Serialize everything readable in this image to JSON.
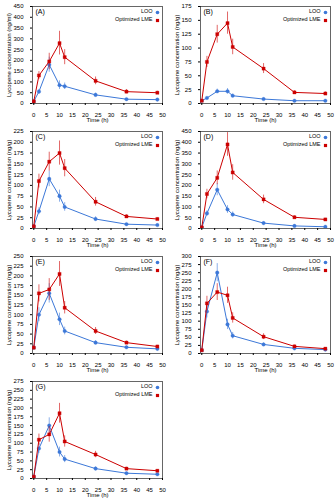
{
  "chart_data": [
    {
      "type": "line",
      "title": "(A)",
      "xlabel": "Time (h)",
      "ylabel": "Lycopene concentration (ng/ml)",
      "x": [
        0,
        2,
        6,
        10,
        12,
        24,
        36,
        48
      ],
      "series": [
        {
          "name": "LOO",
          "color": "#3c78d8",
          "marker": "circle",
          "values": [
            10,
            55,
            180,
            85,
            80,
            40,
            20,
            18
          ],
          "yerr": [
            3,
            10,
            35,
            20,
            15,
            8,
            4,
            3
          ]
        },
        {
          "name": "Optimized LME",
          "color": "#cc0000",
          "marker": "square",
          "values": [
            10,
            130,
            195,
            280,
            215,
            105,
            55,
            50
          ],
          "yerr": [
            3,
            18,
            38,
            55,
            35,
            18,
            10,
            7
          ]
        }
      ],
      "xlim": [
        -0.5,
        50
      ],
      "xticks": [
        0,
        5,
        10,
        15,
        20,
        25,
        30,
        35,
        40,
        45,
        50
      ],
      "ylim": [
        0,
        450
      ],
      "yticks": [
        0,
        50,
        100,
        150,
        200,
        250,
        300,
        350,
        400,
        450
      ],
      "legend": "upper right",
      "grid": false
    },
    {
      "type": "line",
      "title": "(B)",
      "xlabel": "Time (h)",
      "ylabel": "Lycopene concentration (ng/g)",
      "x": [
        0,
        2,
        6,
        10,
        12,
        24,
        36,
        48
      ],
      "series": [
        {
          "name": "LOO",
          "color": "#3c78d8",
          "marker": "circle",
          "values": [
            5,
            10,
            22,
            22,
            14,
            8,
            5,
            5
          ],
          "yerr": [
            1,
            2,
            4,
            5,
            3,
            2,
            1,
            1
          ]
        },
        {
          "name": "Optimized LME",
          "color": "#cc0000",
          "marker": "square",
          "values": [
            5,
            75,
            125,
            145,
            102,
            63,
            20,
            18
          ],
          "yerr": [
            1,
            10,
            16,
            20,
            14,
            9,
            3,
            3
          ]
        }
      ],
      "xlim": [
        -0.5,
        50
      ],
      "xticks": [
        0,
        5,
        10,
        15,
        20,
        25,
        30,
        35,
        40,
        45,
        50
      ],
      "ylim": [
        0,
        175
      ],
      "yticks": [
        0,
        25,
        50,
        75,
        100,
        125,
        150,
        175
      ],
      "legend": "upper right",
      "grid": false
    },
    {
      "type": "line",
      "title": "(C)",
      "xlabel": "Time (h)",
      "ylabel": "Lycopene concentration (ng/g)",
      "x": [
        0,
        2,
        6,
        10,
        12,
        24,
        36,
        48
      ],
      "series": [
        {
          "name": "LOO",
          "color": "#3c78d8",
          "marker": "circle",
          "values": [
            5,
            40,
            115,
            75,
            50,
            22,
            10,
            8
          ],
          "yerr": [
            2,
            8,
            18,
            14,
            10,
            5,
            2,
            2
          ]
        },
        {
          "name": "Optimized LME",
          "color": "#cc0000",
          "marker": "square",
          "values": [
            5,
            110,
            155,
            175,
            140,
            62,
            28,
            22
          ],
          "yerr": [
            2,
            16,
            22,
            28,
            20,
            10,
            4,
            3
          ]
        }
      ],
      "xlim": [
        -0.5,
        50
      ],
      "xticks": [
        0,
        5,
        10,
        15,
        20,
        25,
        30,
        35,
        40,
        45,
        50
      ],
      "ylim": [
        0,
        225
      ],
      "yticks": [
        0,
        25,
        50,
        75,
        100,
        125,
        150,
        175,
        200,
        225
      ],
      "legend": "upper right",
      "grid": false
    },
    {
      "type": "line",
      "title": "(D)",
      "xlabel": "Time (h)",
      "ylabel": "Lycopene concentration (ng/g)",
      "x": [
        0,
        2,
        6,
        10,
        12,
        24,
        36,
        48
      ],
      "series": [
        {
          "name": "LOO",
          "color": "#3c78d8",
          "marker": "circle",
          "values": [
            5,
            70,
            180,
            88,
            65,
            25,
            12,
            8
          ],
          "yerr": [
            2,
            12,
            28,
            18,
            12,
            5,
            3,
            2
          ]
        },
        {
          "name": "Optimized LME",
          "color": "#cc0000",
          "marker": "square",
          "values": [
            5,
            160,
            235,
            390,
            260,
            135,
            52,
            42
          ],
          "yerr": [
            2,
            22,
            32,
            55,
            36,
            20,
            7,
            5
          ]
        }
      ],
      "xlim": [
        -0.5,
        50
      ],
      "xticks": [
        0,
        5,
        10,
        15,
        20,
        25,
        30,
        35,
        40,
        45,
        50
      ],
      "ylim": [
        0,
        450
      ],
      "yticks": [
        0,
        50,
        100,
        150,
        200,
        250,
        300,
        350,
        400,
        450
      ],
      "legend": "upper right",
      "grid": false
    },
    {
      "type": "line",
      "title": "(E)",
      "xlabel": "Time (h)",
      "ylabel": "Lycopene concentration (ng/g)",
      "x": [
        0,
        2,
        6,
        10,
        12,
        24,
        36,
        48
      ],
      "series": [
        {
          "name": "LOO",
          "color": "#3c78d8",
          "marker": "circle",
          "values": [
            15,
            100,
            155,
            88,
            58,
            28,
            16,
            12
          ],
          "yerr": [
            4,
            18,
            25,
            16,
            10,
            5,
            3,
            2
          ]
        },
        {
          "name": "Optimized LME",
          "color": "#cc0000",
          "marker": "square",
          "values": [
            15,
            155,
            165,
            205,
            118,
            58,
            28,
            18
          ],
          "yerr": [
            4,
            22,
            28,
            32,
            16,
            9,
            4,
            3
          ]
        }
      ],
      "xlim": [
        -0.5,
        50
      ],
      "xticks": [
        0,
        5,
        10,
        15,
        20,
        25,
        30,
        35,
        40,
        45,
        50
      ],
      "ylim": [
        0,
        250
      ],
      "yticks": [
        0,
        25,
        50,
        75,
        100,
        125,
        150,
        175,
        200,
        225,
        250
      ],
      "legend": "upper right",
      "grid": false
    },
    {
      "type": "line",
      "title": "(F)",
      "xlabel": "Time (h)",
      "ylabel": "Lycopene concentration (ng/g)",
      "x": [
        0,
        2,
        6,
        10,
        12,
        24,
        36,
        48
      ],
      "series": [
        {
          "name": "LOO",
          "color": "#3c78d8",
          "marker": "circle",
          "values": [
            10,
            130,
            250,
            90,
            55,
            28,
            16,
            12
          ],
          "yerr": [
            3,
            20,
            28,
            16,
            10,
            5,
            3,
            2
          ]
        },
        {
          "name": "Optimized LME",
          "color": "#cc0000",
          "marker": "square",
          "values": [
            10,
            155,
            190,
            180,
            110,
            52,
            22,
            15
          ],
          "yerr": [
            3,
            22,
            26,
            25,
            16,
            9,
            4,
            3
          ]
        }
      ],
      "xlim": [
        -0.5,
        50
      ],
      "xticks": [
        0,
        5,
        10,
        15,
        20,
        25,
        30,
        35,
        40,
        45,
        50
      ],
      "ylim": [
        0,
        300
      ],
      "yticks": [
        0,
        25,
        50,
        75,
        100,
        125,
        150,
        175,
        200,
        225,
        250,
        275,
        300
      ],
      "legend": "upper right",
      "grid": false
    },
    {
      "type": "line",
      "title": "(G)",
      "xlabel": "Time (h)",
      "ylabel": "Lycopene concentration (ng/g)",
      "x": [
        0,
        2,
        6,
        10,
        12,
        24,
        36,
        48
      ],
      "series": [
        {
          "name": "LOO",
          "color": "#3c78d8",
          "marker": "circle",
          "values": [
            5,
            85,
            150,
            75,
            55,
            28,
            15,
            12
          ],
          "yerr": [
            2,
            14,
            22,
            14,
            10,
            5,
            3,
            2
          ]
        },
        {
          "name": "Optimized LME",
          "color": "#cc0000",
          "marker": "square",
          "values": [
            5,
            110,
            125,
            185,
            105,
            68,
            28,
            22
          ],
          "yerr": [
            2,
            16,
            22,
            28,
            16,
            9,
            4,
            3
          ]
        }
      ],
      "xlim": [
        -0.5,
        50
      ],
      "xticks": [
        0,
        5,
        10,
        15,
        20,
        25,
        30,
        35,
        40,
        45,
        50
      ],
      "ylim": [
        0,
        275
      ],
      "yticks": [
        0,
        25,
        50,
        75,
        100,
        125,
        150,
        175,
        200,
        225,
        250,
        275
      ],
      "legend": "upper right",
      "grid": false
    }
  ]
}
